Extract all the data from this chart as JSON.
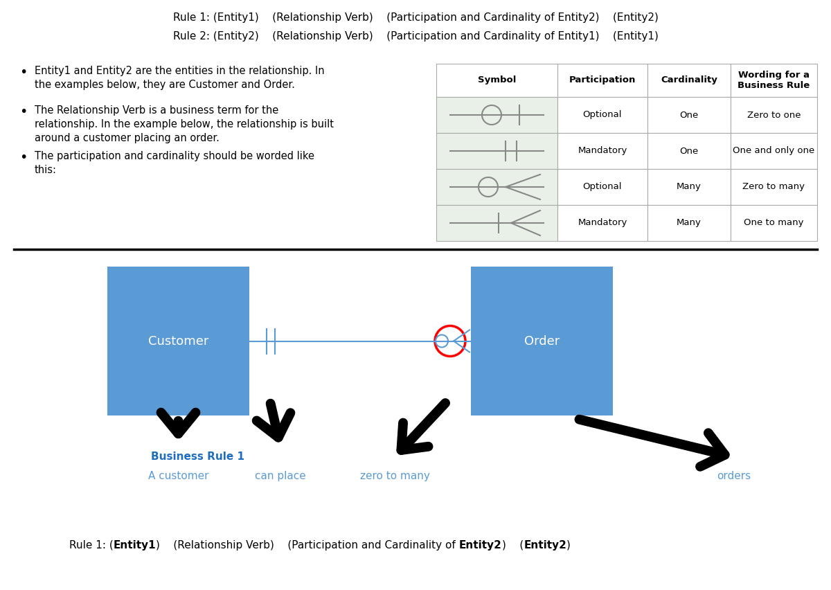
{
  "bg_color": "#ffffff",
  "top_rule1": "Rule 1: (Entity1)    (Relationship Verb)    (Participation and Cardinality of Entity2)    (Entity2)",
  "top_rule2": "Rule 2: (Entity2)    (Relationship Verb)    (Participation and Cardinality of Entity1)    (Entity1)",
  "bullet1": "Entity1 and Entity2 are the entities in the relationship. In\nthe examples below, they are Customer and Order.",
  "bullet2": "The Relationship Verb is a business term for the\nrelationship. In the example below, the relationship is built\naround a customer placing an order.",
  "bullet3": "The participation and cardinality should be worded like\nthis:",
  "table_headers": [
    "Symbol",
    "Participation",
    "Cardinality",
    "Wording for a\nBusiness Rule"
  ],
  "table_rows": [
    [
      "",
      "Optional",
      "One",
      "Zero to one"
    ],
    [
      "",
      "Mandatory",
      "One",
      "One and only one"
    ],
    [
      "",
      "Optional",
      "Many",
      "Zero to many"
    ],
    [
      "",
      "Mandatory",
      "Many",
      "One to many"
    ]
  ],
  "table_symbol_bg": "#e8f0e8",
  "table_border_color": "#aaaaaa",
  "box_color": "#5b9bd5",
  "line_color": "#5b9bd5",
  "arrow_color": "#000000",
  "label_color": "#5b9bd5",
  "business_rule_label_color": "#1f6dbf",
  "sym_line_color": "#888888",
  "red_circle_color": "#ff0000"
}
